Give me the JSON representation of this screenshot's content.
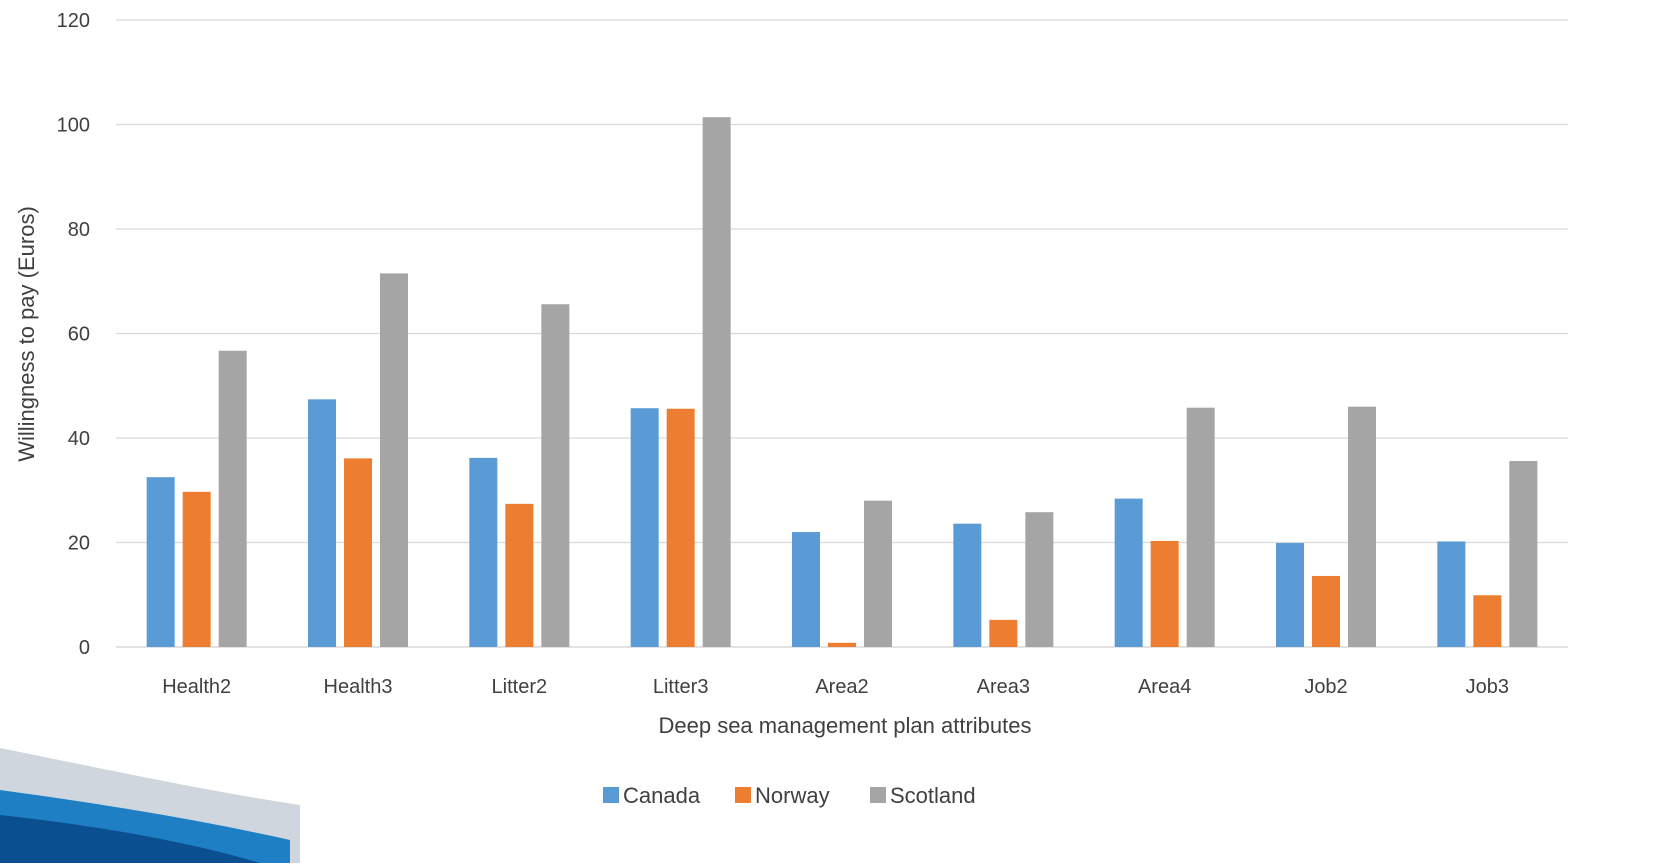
{
  "chart_data": {
    "type": "bar",
    "title": "",
    "xlabel": "Deep sea management plan attributes",
    "ylabel": "Willingness to pay (Euros)",
    "ylim": [
      0,
      120
    ],
    "yticks": [
      0,
      20,
      40,
      60,
      80,
      100,
      120
    ],
    "grid": true,
    "legend_position": "bottom",
    "categories": [
      "Health2",
      "Health3",
      "Litter2",
      "Litter3",
      "Area2",
      "Area3",
      "Area4",
      "Job2",
      "Job3"
    ],
    "series": [
      {
        "name": "Canada",
        "color": "#5b9bd5",
        "values": [
          32.5,
          47.4,
          36.2,
          45.7,
          22.0,
          23.6,
          28.4,
          19.9,
          20.2
        ]
      },
      {
        "name": "Norway",
        "color": "#ed7d31",
        "values": [
          29.7,
          36.1,
          27.4,
          45.6,
          0.8,
          5.2,
          20.3,
          13.6,
          9.9
        ]
      },
      {
        "name": "Scotland",
        "color": "#a5a5a5",
        "values": [
          56.7,
          71.5,
          65.6,
          101.4,
          28.0,
          25.8,
          45.8,
          46.0,
          35.6
        ]
      }
    ]
  },
  "decoration": {
    "swoosh_colors": [
      "#0a4f8f",
      "#1e7fc4",
      "#cfd6dd"
    ]
  }
}
